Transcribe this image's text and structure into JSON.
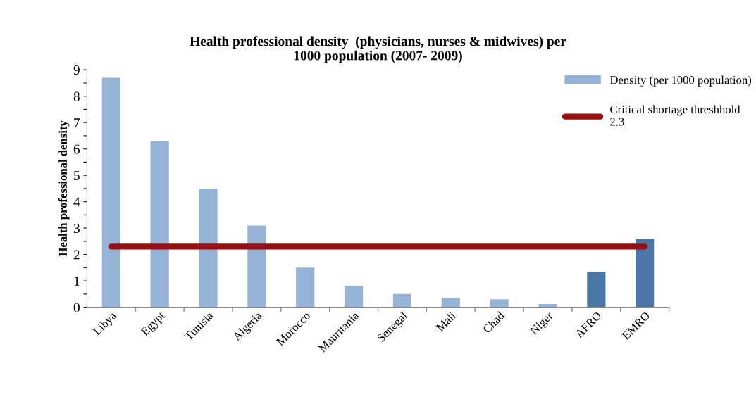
{
  "chart_data": {
    "type": "bar",
    "title": "Health professional density  (physicians, nurses & midwives) per\n1000 population (2007- 2009)",
    "ylabel": "Health professional density",
    "categories": [
      "Libya",
      "Egypt",
      "Tunisia",
      "Algeria",
      "Morocco",
      "Mauritania",
      "Senegal",
      "Mali",
      "Chad",
      "Niger",
      "AFRO",
      "EMRO"
    ],
    "series": [
      {
        "name": "Density (per 1000 population)",
        "color": "#95b3d7",
        "colors": [
          "#95b3d7",
          "#95b3d7",
          "#95b3d7",
          "#95b3d7",
          "#95b3d7",
          "#95b3d7",
          "#95b3d7",
          "#95b3d7",
          "#95b3d7",
          "#95b3d7",
          "#4a76a8",
          "#4a76a8"
        ],
        "values": [
          8.7,
          6.3,
          4.5,
          3.1,
          1.5,
          0.8,
          0.5,
          0.35,
          0.3,
          0.12,
          1.35,
          2.6
        ]
      },
      {
        "name": "Critical shortage threshhold\n2.3",
        "type": "line",
        "color": "#990e0e",
        "values": [
          2.3,
          2.3,
          2.3,
          2.3,
          2.3,
          2.3,
          2.3,
          2.3,
          2.3,
          2.3,
          2.3,
          2.3
        ]
      }
    ],
    "ylim": [
      0,
      9
    ],
    "yticks": [
      0,
      {
        "value": 0.5,
        "label": null
      },
      1,
      {
        "value": 1.5,
        "label": null
      },
      2,
      {
        "value": 2.5,
        "label": null
      },
      3,
      {
        "value": 3.5,
        "label": null
      },
      4,
      {
        "value": 4.5,
        "label": null
      },
      5,
      {
        "value": 5.5,
        "label": null
      },
      6,
      {
        "value": 6.5,
        "label": null
      },
      7,
      {
        "value": 7.5,
        "label": null
      },
      8,
      {
        "value": 8.5,
        "label": null
      },
      9
    ],
    "grid": false,
    "legend": "top right"
  }
}
